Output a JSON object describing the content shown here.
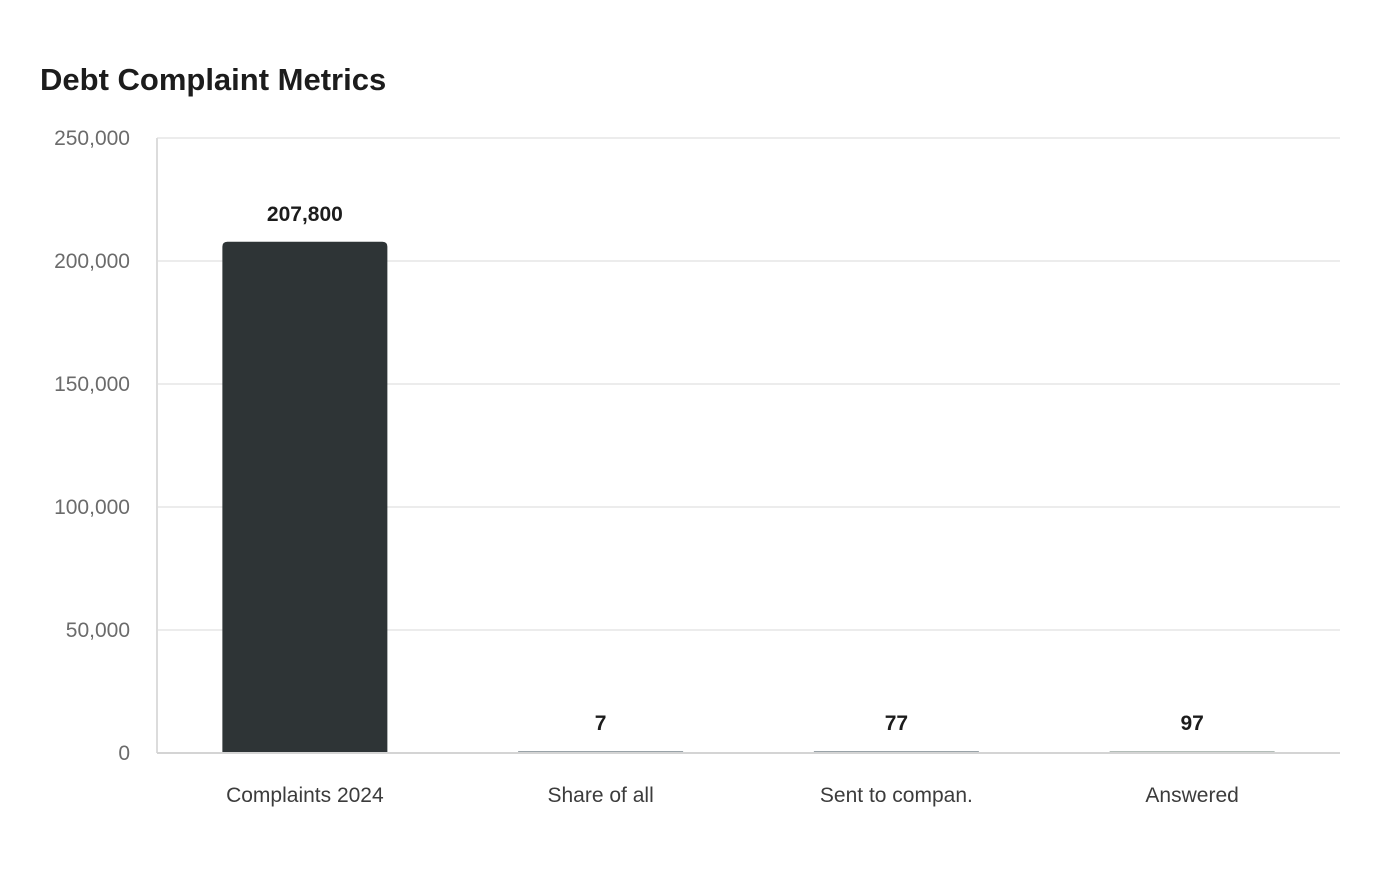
{
  "chart_data": {
    "type": "bar",
    "title": "Debt Complaint Metrics",
    "categories": [
      "Complaints 2024",
      "Share of all",
      "Sent to compan.",
      "Answered"
    ],
    "values": [
      207800,
      7,
      77,
      97
    ],
    "value_labels": [
      "207,800",
      "7",
      "77",
      "97"
    ],
    "bar_colors": [
      "#2e3436",
      "#9aa3a8",
      "#9aa3a8",
      "#b3bdb8"
    ],
    "ylim": [
      0,
      250000
    ],
    "yticks": [
      0,
      50000,
      100000,
      150000,
      200000,
      250000
    ],
    "ytick_labels": [
      "0",
      "50,000",
      "100,000",
      "150,000",
      "200,000",
      "250,000"
    ],
    "grid": true,
    "xlabel": "",
    "ylabel": ""
  }
}
